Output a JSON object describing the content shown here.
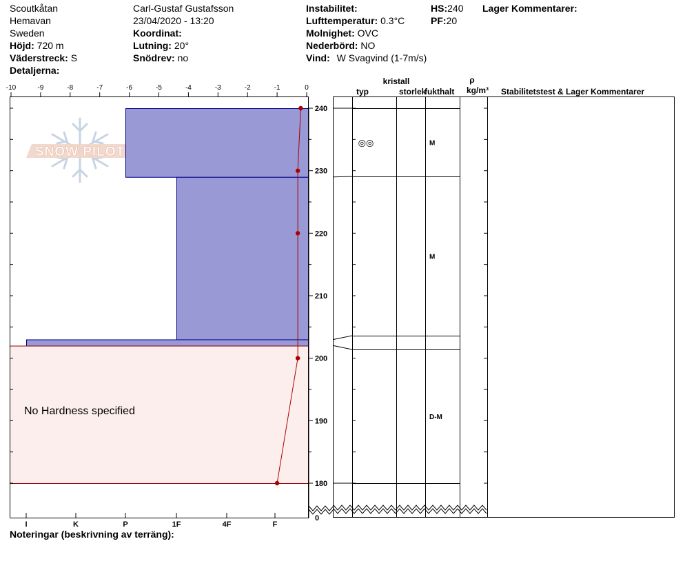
{
  "header": {
    "location": "Scoutkåtan",
    "range": "Hemavan",
    "country": "Sweden",
    "elevation_label": "Höjd:",
    "elevation_value": "720 m",
    "aspect_label": "Väderstreck:",
    "aspect_value": "S",
    "details_label": "Detaljerna:",
    "observer": "Carl-Gustaf Gustafsson",
    "datetime": "23/04/2020 - 13:20",
    "coord_label": "Koordinat:",
    "slope_label": "Lutning:",
    "slope_value": "20°",
    "drift_label": "Snödrev:",
    "drift_value": "no",
    "instability_label": "Instabilitet:",
    "air_temp_label": "Lufttemperatur:",
    "air_temp_value": "0.3°C",
    "sky_label": "Molnighet:",
    "sky_value": "OVC",
    "precip_label": "Nederbörd:",
    "precip_value": "NO",
    "wind_label": "Vind:",
    "wind_value": "W Svagvind (1-7m/s)",
    "hs_label": "HS:",
    "hs_value": "240",
    "pf_label": "PF:",
    "pf_value": "20",
    "layer_comments_label": "Lager Kommentarer:"
  },
  "footer": {
    "notes_label": "Noteringar (beskrivning av terräng):"
  },
  "logo": {
    "text": "SNOW PILOT"
  },
  "colors": {
    "hardness_fill": "#9999d6",
    "hardness_stroke": "#00008b",
    "no_hardness_fill": "#fdeeee",
    "no_hardness_stroke": "#8b0000",
    "temp_line": "#aa0000"
  },
  "chart_data": {
    "type": "snow-profile",
    "temperature_axis": {
      "ticks": [
        -10,
        -9,
        -8,
        -7,
        -6,
        -5,
        -4,
        -3,
        -2,
        -1,
        0
      ],
      "tick_labels": [
        "-10",
        "-9",
        "-8",
        "-7",
        "-6",
        "-5",
        "-4",
        "-3",
        "-2",
        "-1",
        "0"
      ],
      "range": [
        -10,
        0
      ]
    },
    "height_axis": {
      "range": [
        180,
        240
      ],
      "ticks": [
        180,
        190,
        200,
        210,
        220,
        230,
        240
      ],
      "tick_labels": [
        "180",
        "190",
        "200",
        "210",
        "220",
        "230",
        "240"
      ],
      "break_label": "0"
    },
    "hardness_axis": {
      "labels": [
        "I",
        "K",
        "P",
        "1F",
        "4F",
        "F"
      ]
    },
    "hardness_layers": [
      {
        "bottom": 229,
        "top": 240,
        "hardness": "P"
      },
      {
        "bottom": 203,
        "top": 229,
        "hardness": "1F"
      },
      {
        "bottom": 202,
        "top": 203,
        "hardness": "I"
      }
    ],
    "no_hardness_layer": {
      "bottom": 180,
      "top": 202,
      "label": "No Hardness specified"
    },
    "temperature_profile": [
      {
        "height": 240,
        "temp": -0.2
      },
      {
        "height": 230,
        "temp": -0.3
      },
      {
        "height": 220,
        "temp": -0.3
      },
      {
        "height": 200,
        "temp": -0.3
      },
      {
        "height": 180,
        "temp": -1.0
      }
    ],
    "table_headers": {
      "crystal": "kristall",
      "type": "typ",
      "size": "storlek",
      "moisture": "fukthalt",
      "density_symbol": "ρ",
      "density_unit": "kg/m³",
      "stability": "Stabilitetstest & Lager Kommentarer"
    },
    "table_layers": [
      {
        "bottom": 229,
        "top": 240,
        "type_symbol": "◎◎",
        "moisture": "M"
      },
      {
        "bottom": 203,
        "top": 229,
        "type_symbol": "",
        "moisture": "M"
      },
      {
        "bottom": 202,
        "top": 203,
        "type_symbol": "",
        "moisture": ""
      },
      {
        "bottom": 180,
        "top": 202,
        "type_symbol": "",
        "moisture": "D-M"
      }
    ]
  }
}
